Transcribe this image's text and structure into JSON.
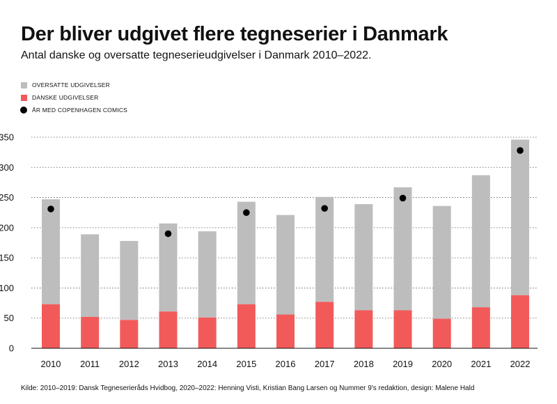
{
  "title": "Der bliver udgivet flere tegneserier i Danmark",
  "subtitle": "Antal danske og oversatte tegneserieudgivelser i Danmark 2010–2022.",
  "legend": [
    {
      "label": "OVERSATTE UDGIVELSER",
      "color": "#bdbdbd",
      "shape": "square"
    },
    {
      "label": "DANSKE UDGIVELSER",
      "color": "#f25a5a",
      "shape": "square"
    },
    {
      "label": "ÅR MED COPENHAGEN COMICS",
      "color": "#000000",
      "shape": "dot"
    }
  ],
  "source": "Kilde: 2010–2019: Dansk Tegneserieråds Hvidbog, 2020–2022: Henning Visti, Kristian Bang Larsen og Nummer 9's redaktion,  design: Malene Hald",
  "chart_data": {
    "type": "bar",
    "stacked": true,
    "categories": [
      "2010",
      "2011",
      "2012",
      "2013",
      "2014",
      "2015",
      "2016",
      "2017",
      "2018",
      "2019",
      "2020",
      "2021",
      "2022"
    ],
    "series": [
      {
        "name": "DANSKE UDGIVELSER",
        "color": "#f25a5a",
        "values": [
          73,
          52,
          47,
          61,
          51,
          73,
          56,
          77,
          63,
          63,
          49,
          68,
          88
        ]
      },
      {
        "name": "OVERSATTE UDGIVELSER",
        "color": "#bdbdbd",
        "values": [
          174,
          137,
          131,
          146,
          143,
          170,
          165,
          174,
          176,
          204,
          187,
          219,
          258
        ]
      }
    ],
    "markers": {
      "name": "ÅR MED COPENHAGEN COMICS",
      "color": "#000000",
      "points": [
        {
          "x": "2010",
          "y": 231
        },
        {
          "x": "2013",
          "y": 190
        },
        {
          "x": "2015",
          "y": 225
        },
        {
          "x": "2017",
          "y": 232
        },
        {
          "x": "2019",
          "y": 249
        },
        {
          "x": "2022",
          "y": 328
        }
      ]
    },
    "yticks": [
      0,
      50,
      100,
      150,
      200,
      250,
      300,
      350
    ],
    "ylim": [
      0,
      350
    ],
    "grid": "horizontal dotted"
  }
}
